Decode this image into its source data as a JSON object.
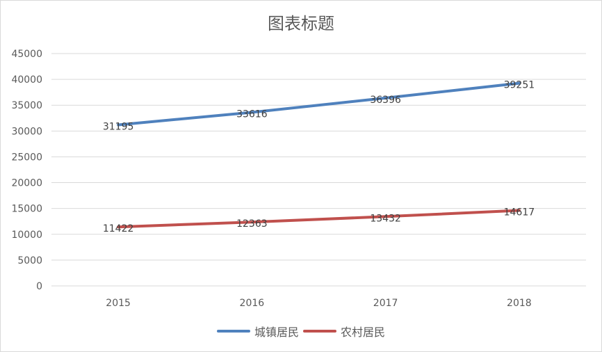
{
  "chart_data": {
    "type": "line",
    "title": "图表标题",
    "categories": [
      "2015",
      "2016",
      "2017",
      "2018"
    ],
    "ylim": [
      0,
      45000
    ],
    "yticks": [
      0,
      5000,
      10000,
      15000,
      20000,
      25000,
      30000,
      35000,
      40000,
      45000
    ],
    "grid": true,
    "legend": "bottom",
    "series": [
      {
        "name": "城镇居民",
        "values": [
          31195,
          33616,
          36396,
          39251
        ],
        "color": "#4f81bd"
      },
      {
        "name": "农村居民",
        "values": [
          11422,
          12363,
          13432,
          14617
        ],
        "color": "#c0504d"
      }
    ]
  }
}
